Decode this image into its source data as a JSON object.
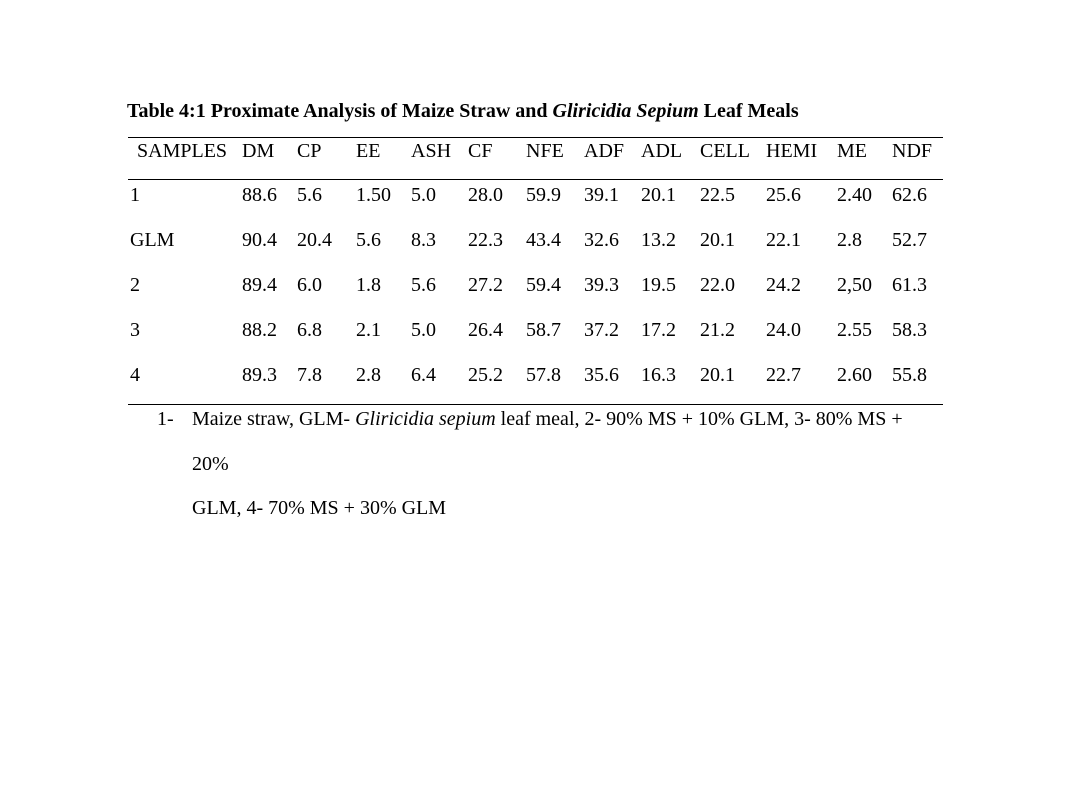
{
  "page": {
    "background_color": "#ffffff",
    "text_color": "#000000"
  },
  "title": {
    "prefix": "Table 4:1 Proximate Analysis of Maize Straw and ",
    "italic": "Gliricidia Sepium",
    "suffix": " Leaf Meals"
  },
  "table": {
    "columns": [
      "SAMPLES",
      "DM",
      "CP",
      "EE",
      "ASH",
      "CF",
      "NFE",
      "ADF",
      "ADL",
      "CELL",
      "HEMI",
      "ME",
      "NDF"
    ],
    "rows": [
      {
        "sample": "1",
        "values": [
          "88.6",
          "5.6",
          "1.50",
          "5.0",
          "28.0",
          "59.9",
          "39.1",
          "20.1",
          "22.5",
          "25.6",
          "2.40",
          "62.6"
        ]
      },
      {
        "sample": "GLM",
        "values": [
          "90.4",
          "20.4",
          "5.6",
          "8.3",
          "22.3",
          "43.4",
          "32.6",
          "13.2",
          "20.1",
          "22.1",
          "2.8",
          "52.7"
        ]
      },
      {
        "sample": "2",
        "values": [
          "89.4",
          "6.0",
          "1.8",
          "5.6",
          "27.2",
          "59.4",
          "39.3",
          "19.5",
          "22.0",
          "24.2",
          "2,50",
          "61.3"
        ]
      },
      {
        "sample": "3",
        "values": [
          "88.2",
          "6.8",
          "2.1",
          "5.0",
          "26.4",
          "58.7",
          "37.2",
          "17.2",
          "21.2",
          "24.0",
          "2.55",
          "58.3"
        ]
      },
      {
        "sample": "4",
        "values": [
          "89.3",
          "7.8",
          "2.8",
          "6.4",
          "25.2",
          "57.8",
          "35.6",
          "16.3",
          "20.1",
          "22.7",
          "2.60",
          "55.8"
        ]
      }
    ]
  },
  "footnote": {
    "marker": "1-",
    "line1_prefix": "Maize straw, GLM- ",
    "line1_italic": "Gliricidia sepium",
    "line1_suffix": " leaf meal, 2- 90% MS + 10% GLM, 3- 80% MS + 20%",
    "line2": "GLM, 4- 70% MS + 30% GLM"
  }
}
